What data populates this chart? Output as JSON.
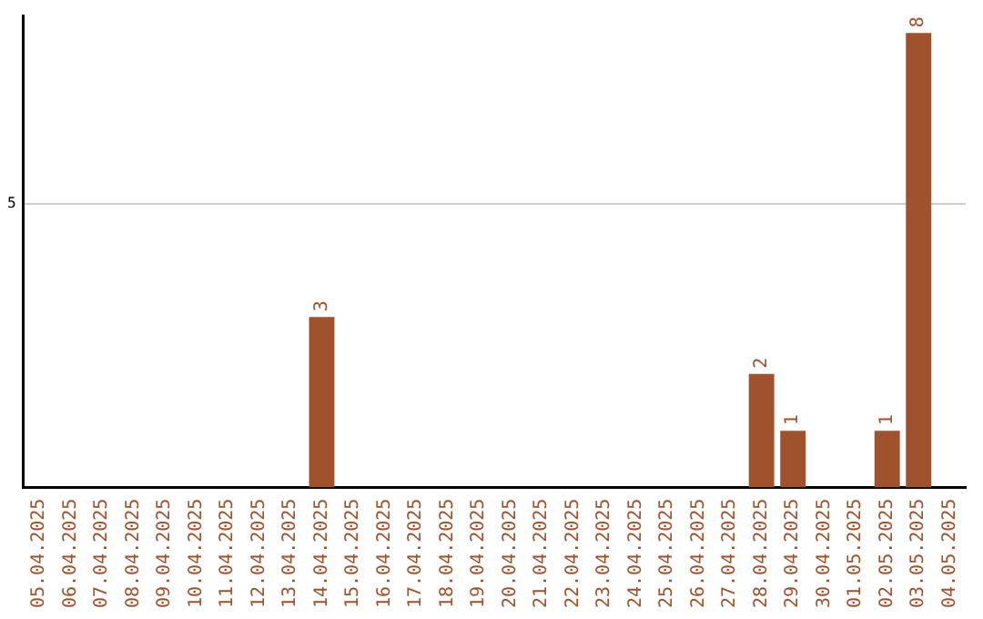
{
  "chart_data": {
    "type": "bar",
    "categories": [
      "05.04.2025",
      "06.04.2025",
      "07.04.2025",
      "08.04.2025",
      "09.04.2025",
      "10.04.2025",
      "11.04.2025",
      "12.04.2025",
      "13.04.2025",
      "14.04.2025",
      "15.04.2025",
      "16.04.2025",
      "17.04.2025",
      "18.04.2025",
      "19.04.2025",
      "20.04.2025",
      "21.04.2025",
      "22.04.2025",
      "23.04.2025",
      "24.04.2025",
      "25.04.2025",
      "26.04.2025",
      "27.04.2025",
      "28.04.2025",
      "29.04.2025",
      "30.04.2025",
      "01.05.2025",
      "02.05.2025",
      "03.05.2025",
      "04.05.2025"
    ],
    "values": [
      0,
      0,
      0,
      0,
      0,
      0,
      0,
      0,
      0,
      3,
      0,
      0,
      0,
      0,
      0,
      0,
      0,
      0,
      0,
      0,
      0,
      0,
      0,
      2,
      1,
      0,
      0,
      1,
      8,
      0
    ],
    "value_labels": [
      null,
      null,
      null,
      null,
      null,
      null,
      null,
      null,
      null,
      "3",
      null,
      null,
      null,
      null,
      null,
      null,
      null,
      null,
      null,
      null,
      null,
      null,
      null,
      "2",
      "1",
      null,
      null,
      "1",
      "8",
      null
    ],
    "color": "#a0522d",
    "ylim": [
      0,
      8.3
    ],
    "yticks": [
      5
    ],
    "grid": "y",
    "legend": false
  }
}
